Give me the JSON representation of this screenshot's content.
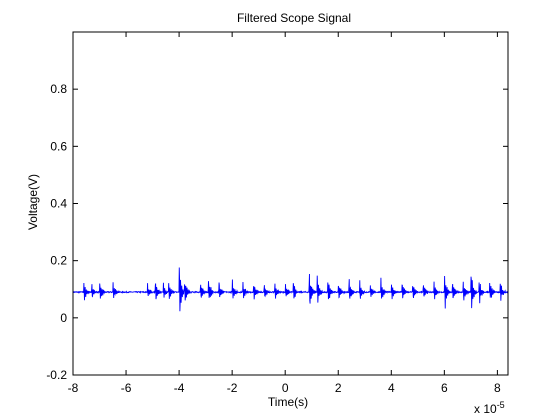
{
  "chart_data": {
    "type": "line",
    "title": "Filtered Scope Signal",
    "xlabel": "Time(s)",
    "ylabel": "Voltage(V)",
    "x_exponent_label": "x 10",
    "x_exponent_power": "-5",
    "x_exponent_value": 1e-05,
    "xlim": [
      -8.0,
      8.4
    ],
    "ylim": [
      -0.2,
      1.0
    ],
    "xticks": [
      -8,
      -6,
      -4,
      -2,
      0,
      2,
      4,
      6,
      8
    ],
    "xtick_labels": [
      "-8",
      "-6",
      "-4",
      "-2",
      "0",
      "2",
      "4",
      "6",
      "8"
    ],
    "yticks": [
      -0.2,
      0,
      0.2,
      0.4,
      0.6,
      0.8
    ],
    "ytick_labels": [
      "-0.2",
      "0",
      "0.2",
      "0.4",
      "0.6",
      "0.8"
    ],
    "grid": false,
    "line_color": "#0000ff",
    "baseline": 0.09,
    "bursts": [
      {
        "t": -7.6,
        "amp": 0.04
      },
      {
        "t": -7.3,
        "amp": 0.03
      },
      {
        "t": -7.0,
        "amp": 0.045
      },
      {
        "t": -6.5,
        "amp": 0.035
      },
      {
        "t": -5.2,
        "amp": 0.03
      },
      {
        "t": -4.9,
        "amp": 0.04
      },
      {
        "t": -4.6,
        "amp": 0.03
      },
      {
        "t": -4.4,
        "amp": 0.035
      },
      {
        "t": -4.0,
        "amp": 0.11
      },
      {
        "t": -3.8,
        "amp": 0.05
      },
      {
        "t": -3.2,
        "amp": 0.04
      },
      {
        "t": -2.9,
        "amp": 0.05
      },
      {
        "t": -2.5,
        "amp": 0.04
      },
      {
        "t": -2.0,
        "amp": 0.04
      },
      {
        "t": -1.6,
        "amp": 0.035
      },
      {
        "t": -1.2,
        "amp": 0.04
      },
      {
        "t": -0.8,
        "amp": 0.03
      },
      {
        "t": -0.4,
        "amp": 0.035
      },
      {
        "t": 0.0,
        "amp": 0.03
      },
      {
        "t": 0.3,
        "amp": 0.04
      },
      {
        "t": 0.9,
        "amp": 0.075
      },
      {
        "t": 1.2,
        "amp": 0.06
      },
      {
        "t": 1.6,
        "amp": 0.05
      },
      {
        "t": 2.0,
        "amp": 0.04
      },
      {
        "t": 2.4,
        "amp": 0.05
      },
      {
        "t": 2.8,
        "amp": 0.04
      },
      {
        "t": 3.2,
        "amp": 0.035
      },
      {
        "t": 3.6,
        "amp": 0.045
      },
      {
        "t": 4.0,
        "amp": 0.035
      },
      {
        "t": 4.4,
        "amp": 0.04
      },
      {
        "t": 4.8,
        "amp": 0.035
      },
      {
        "t": 5.2,
        "amp": 0.04
      },
      {
        "t": 5.6,
        "amp": 0.035
      },
      {
        "t": 6.0,
        "amp": 0.075
      },
      {
        "t": 6.3,
        "amp": 0.04
      },
      {
        "t": 6.7,
        "amp": 0.045
      },
      {
        "t": 7.0,
        "amp": 0.08
      },
      {
        "t": 7.3,
        "amp": 0.05
      },
      {
        "t": 7.7,
        "amp": 0.045
      },
      {
        "t": 8.1,
        "amp": 0.04
      }
    ]
  }
}
